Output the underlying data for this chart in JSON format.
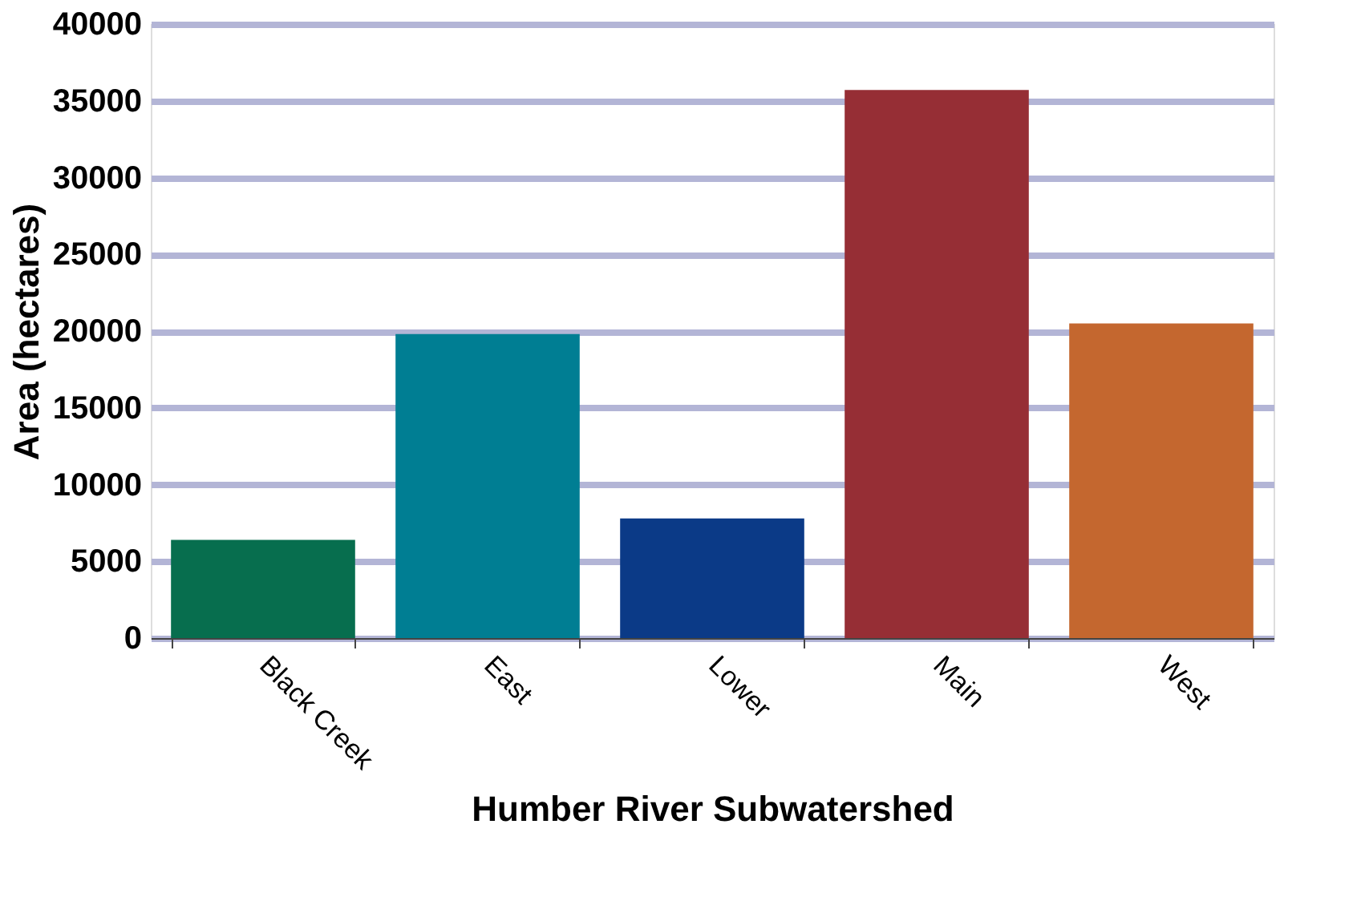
{
  "chart_data": {
    "type": "bar",
    "xlabel": "Humber River Subwatershed",
    "ylabel": "Area (hectares)",
    "categories": [
      "Black Creek",
      "East",
      "Lower",
      "Main",
      "West"
    ],
    "values": [
      6400,
      19800,
      7800,
      35700,
      20500
    ],
    "colors": [
      "#076e4e",
      "#007e93",
      "#0b3a87",
      "#962e35",
      "#c4672f"
    ],
    "ylim": [
      0,
      40000
    ],
    "yticks": [
      0,
      5000,
      10000,
      15000,
      20000,
      25000,
      30000,
      35000,
      40000
    ],
    "grid": "y"
  }
}
